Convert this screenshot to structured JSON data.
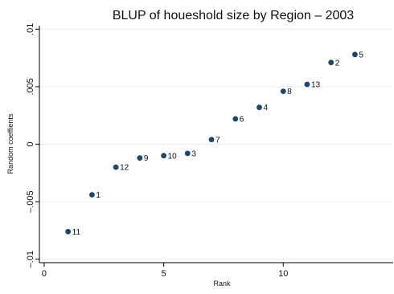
{
  "chart_data": {
    "type": "scatter",
    "title": "BLUP of houeshold size by Region  – 2003",
    "xlabel": "Rank",
    "ylabel": "Random coeffients",
    "xlim": [
      -0.2,
      14.6
    ],
    "ylim": [
      -0.0103,
      0.0103
    ],
    "xticks": [
      0,
      5,
      10
    ],
    "xtick_labels": [
      "0",
      "5",
      "10"
    ],
    "yticks": [
      -0.01,
      -0.005,
      0,
      0.005,
      0.01
    ],
    "ytick_labels": [
      "–.01",
      "–.005",
      "0",
      ".005",
      ".01"
    ],
    "grid": true,
    "marker_color": "#1a476f",
    "points": [
      {
        "x": 1,
        "y": -0.0076,
        "label": "11"
      },
      {
        "x": 2,
        "y": -0.0044,
        "label": "1"
      },
      {
        "x": 3,
        "y": -0.002,
        "label": "12"
      },
      {
        "x": 4,
        "y": -0.0012,
        "label": "9"
      },
      {
        "x": 5,
        "y": -0.001,
        "label": "10"
      },
      {
        "x": 6,
        "y": -0.0008,
        "label": "3"
      },
      {
        "x": 7,
        "y": 0.0004,
        "label": "7"
      },
      {
        "x": 8,
        "y": 0.0022,
        "label": "6"
      },
      {
        "x": 9,
        "y": 0.0032,
        "label": "4"
      },
      {
        "x": 10,
        "y": 0.0046,
        "label": "8"
      },
      {
        "x": 11,
        "y": 0.0052,
        "label": "13"
      },
      {
        "x": 12,
        "y": 0.0071,
        "label": "2"
      },
      {
        "x": 13,
        "y": 0.0078,
        "label": "5"
      }
    ]
  }
}
